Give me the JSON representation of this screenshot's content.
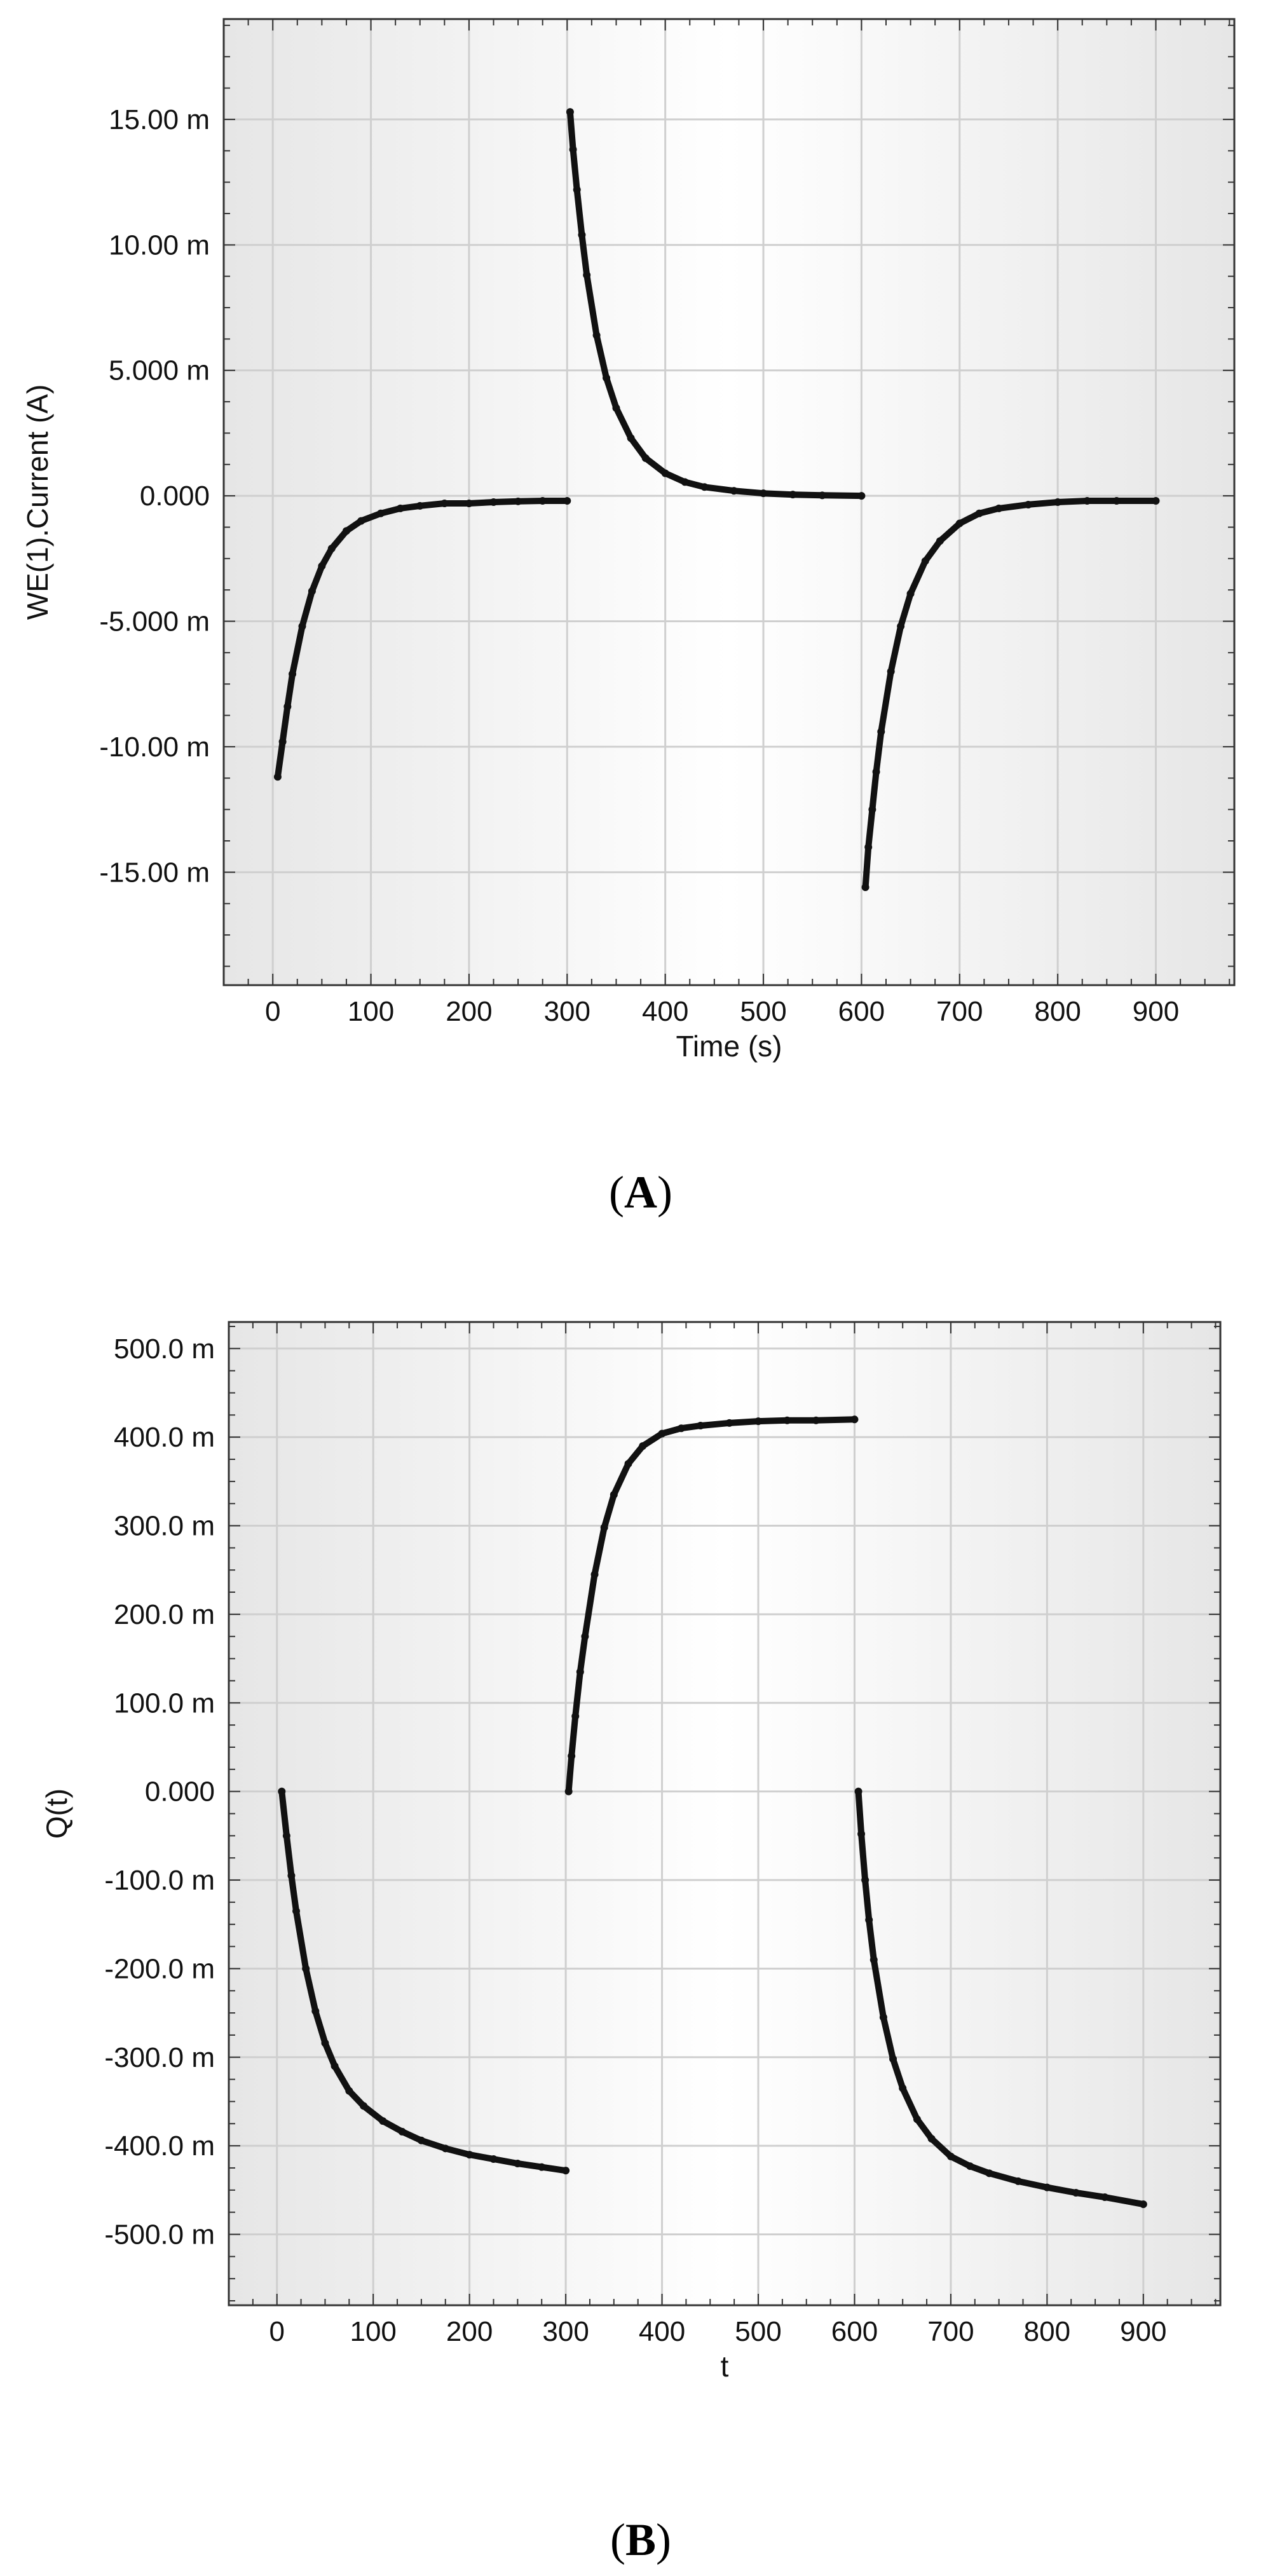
{
  "colors": {
    "panel_edge": "#e6e6e6",
    "panel_center": "#ffffff",
    "grid": "#cfcfcf",
    "frame": "#333333",
    "data": "#111111"
  },
  "chart_data": [
    {
      "type": "scatter",
      "panel_label": "A",
      "xlabel": "Time (s)",
      "ylabel": "WE(1).Current (A)",
      "xlim": [
        -50,
        980
      ],
      "ylim": [
        -19.5,
        19.0
      ],
      "grid": true,
      "x_ticks": [
        0,
        100,
        200,
        300,
        400,
        500,
        600,
        700,
        800,
        900
      ],
      "x_tick_labels": [
        "0",
        "100",
        "200",
        "300",
        "400",
        "500",
        "600",
        "700",
        "800",
        "900"
      ],
      "y_ticks": [
        15,
        10,
        5,
        0,
        -5,
        -10,
        -15
      ],
      "y_tick_labels": [
        "15.00 m",
        "10.00 m",
        "5.000 m",
        "0.000",
        "-5.000 m",
        "-10.00 m",
        "-15.00 m"
      ],
      "y_unit_note": "m = milli (values in mA)",
      "series": [
        {
          "x": [
            5,
            10,
            15,
            20,
            30,
            40,
            50,
            60,
            75,
            90,
            110,
            130,
            150,
            175,
            200,
            225,
            250,
            275,
            300
          ],
          "y": [
            -11.2,
            -9.8,
            -8.4,
            -7.1,
            -5.2,
            -3.8,
            -2.8,
            -2.1,
            -1.4,
            -1.0,
            -0.7,
            -0.5,
            -0.4,
            -0.3,
            -0.3,
            -0.25,
            -0.22,
            -0.2,
            -0.2
          ]
        },
        {
          "x": [
            303,
            306,
            310,
            315,
            320,
            330,
            340,
            350,
            365,
            380,
            400,
            420,
            440,
            470,
            500,
            530,
            560,
            600
          ],
          "y": [
            15.3,
            13.8,
            12.2,
            10.4,
            8.8,
            6.4,
            4.7,
            3.5,
            2.3,
            1.5,
            0.9,
            0.55,
            0.35,
            0.2,
            0.1,
            0.05,
            0.02,
            0.0
          ]
        },
        {
          "x": [
            604,
            607,
            611,
            615,
            620,
            630,
            640,
            650,
            665,
            680,
            700,
            720,
            740,
            770,
            800,
            830,
            860,
            900
          ],
          "y": [
            -15.6,
            -14.0,
            -12.5,
            -11.0,
            -9.4,
            -7.0,
            -5.2,
            -3.9,
            -2.6,
            -1.8,
            -1.1,
            -0.7,
            -0.5,
            -0.35,
            -0.25,
            -0.2,
            -0.2,
            -0.2
          ]
        }
      ]
    },
    {
      "type": "scatter",
      "panel_label": "B",
      "xlabel": "t",
      "ylabel": "Q(t)",
      "xlim": [
        -50,
        980
      ],
      "ylim": [
        -580,
        530
      ],
      "grid": true,
      "x_ticks": [
        0,
        100,
        200,
        300,
        400,
        500,
        600,
        700,
        800,
        900
      ],
      "x_tick_labels": [
        "0",
        "100",
        "200",
        "300",
        "400",
        "500",
        "600",
        "700",
        "800",
        "900"
      ],
      "y_ticks": [
        500,
        400,
        300,
        200,
        100,
        0,
        -100,
        -200,
        -300,
        -400,
        -500
      ],
      "y_tick_labels": [
        "500.0 m",
        "400.0 m",
        "300.0 m",
        "200.0 m",
        "100.0 m",
        "0.000",
        "-100.0 m",
        "-200.0 m",
        "-300.0 m",
        "-400.0 m",
        "-500.0 m"
      ],
      "y_unit_note": "m = milli",
      "series": [
        {
          "x": [
            5,
            10,
            15,
            20,
            30,
            40,
            50,
            60,
            75,
            90,
            110,
            130,
            150,
            175,
            200,
            225,
            250,
            275,
            300
          ],
          "y": [
            0,
            -50,
            -95,
            -135,
            -200,
            -248,
            -284,
            -310,
            -338,
            -355,
            -372,
            -384,
            -394,
            -403,
            -410,
            -415,
            -420,
            -424,
            -428
          ]
        },
        {
          "x": [
            303,
            306,
            310,
            315,
            320,
            330,
            340,
            350,
            365,
            380,
            400,
            420,
            440,
            470,
            500,
            530,
            560,
            600
          ],
          "y": [
            0,
            40,
            85,
            135,
            175,
            245,
            298,
            335,
            370,
            390,
            404,
            410,
            413,
            416,
            418,
            419,
            419,
            420
          ]
        },
        {
          "x": [
            604,
            607,
            611,
            615,
            620,
            630,
            640,
            650,
            665,
            680,
            700,
            720,
            740,
            770,
            800,
            830,
            860,
            900
          ],
          "y": [
            0,
            -48,
            -100,
            -145,
            -190,
            -255,
            -302,
            -335,
            -370,
            -392,
            -412,
            -423,
            -431,
            -440,
            -447,
            -453,
            -458,
            -466
          ]
        }
      ]
    }
  ]
}
